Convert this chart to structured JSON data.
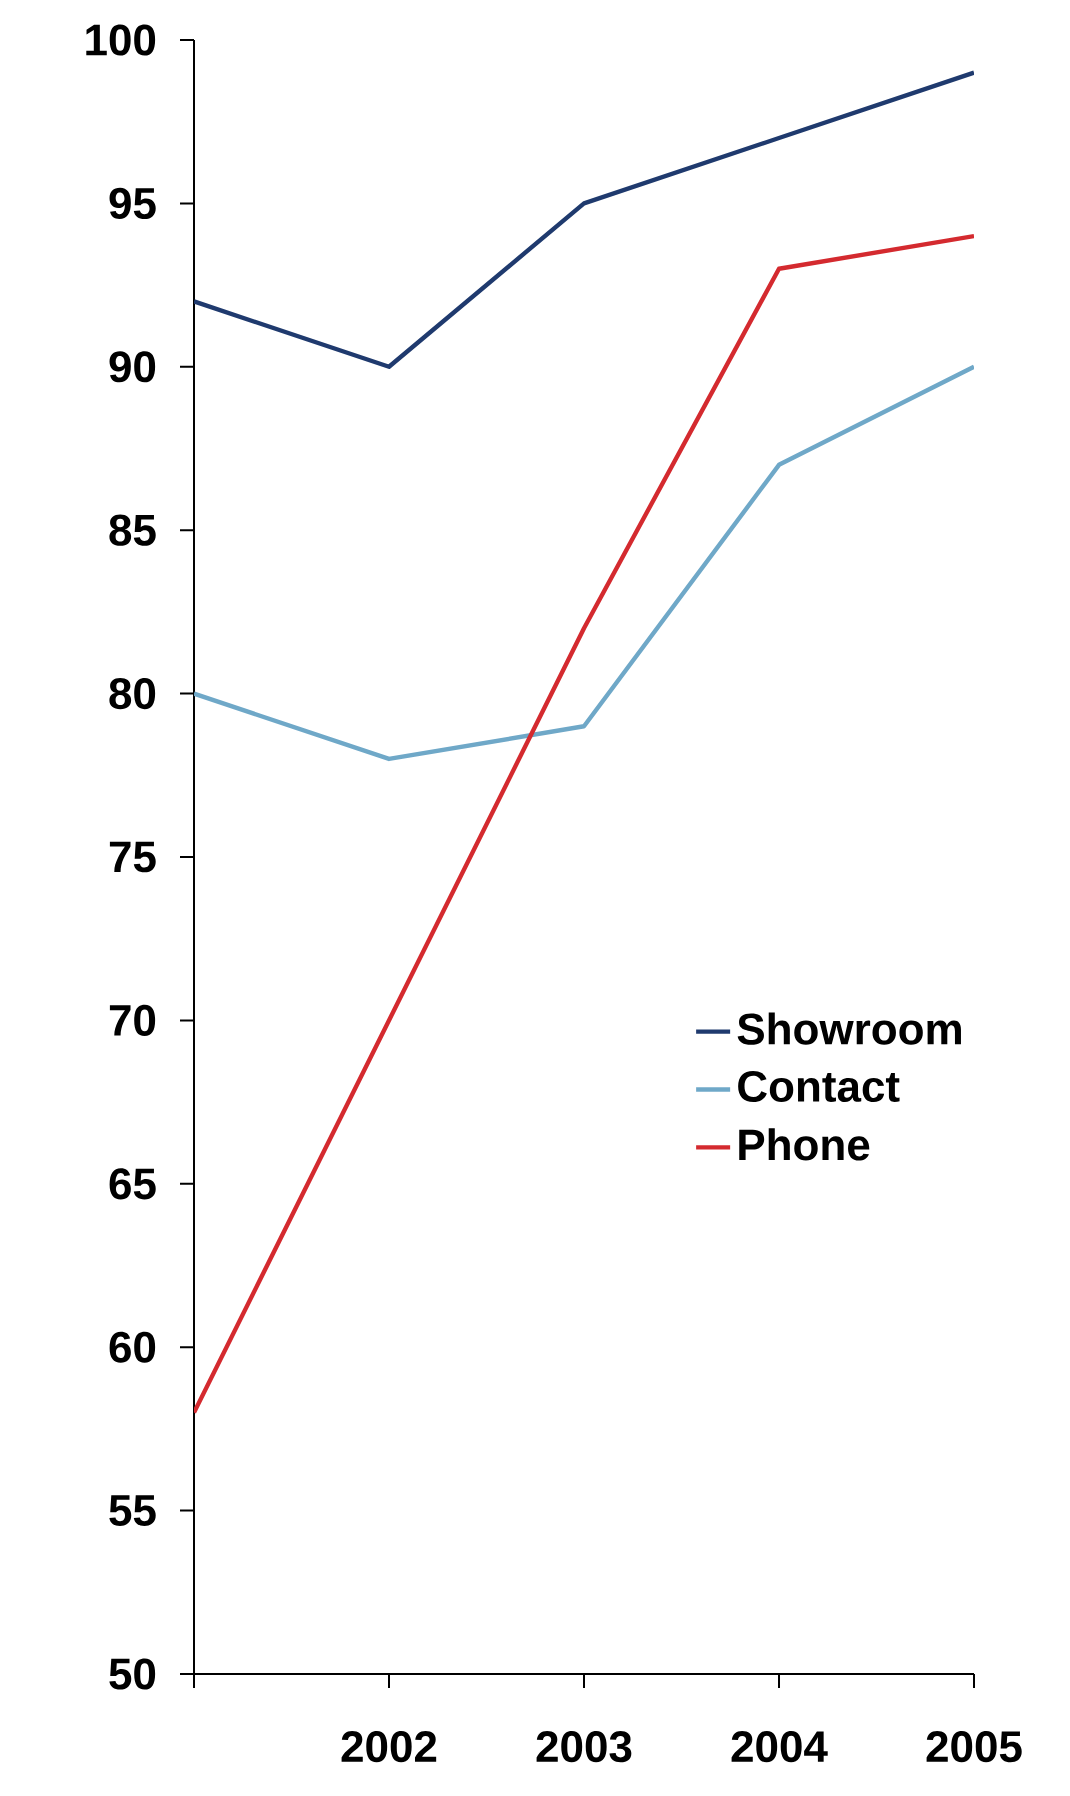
{
  "chart_data": {
    "type": "line",
    "categories": [
      null,
      "2002",
      "2003",
      "2004",
      "2005"
    ],
    "series": [
      {
        "name": "Showroom",
        "color": "#1f3a6e",
        "values": [
          92,
          90,
          95,
          97,
          99
        ]
      },
      {
        "name": "Contact",
        "color": "#6fa8c8",
        "values": [
          80,
          78,
          79,
          87,
          90
        ]
      },
      {
        "name": "Phone",
        "color": "#d42a2f",
        "values": [
          58,
          70,
          82,
          93,
          94
        ]
      }
    ],
    "ylim": [
      50,
      100
    ],
    "yticks": [
      50,
      55,
      60,
      65,
      70,
      75,
      80,
      85,
      90,
      95,
      100
    ],
    "grid": false,
    "legend": "right",
    "marker": "none",
    "line_style": "solid"
  }
}
